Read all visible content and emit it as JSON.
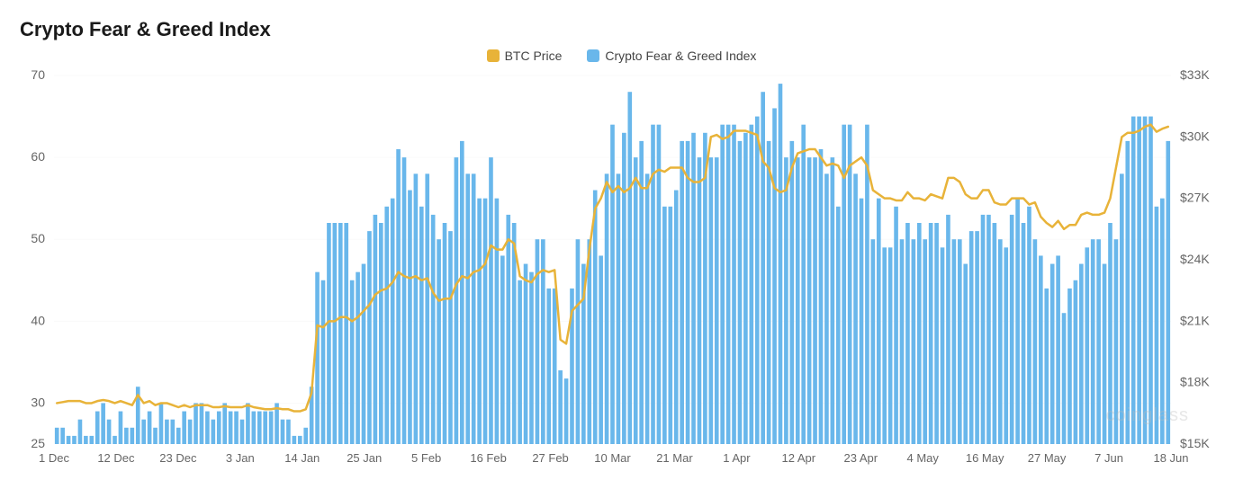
{
  "title": "Crypto Fear & Greed Index",
  "legend": {
    "btc_label": "BTC Price",
    "fg_label": "Crypto Fear & Greed Index"
  },
  "colors": {
    "btc_line": "#e8b339",
    "fg_bar": "#69b7eb",
    "grid": "#fafafa",
    "axis_text": "#666666",
    "background": "#ffffff"
  },
  "chart": {
    "type": "bar+line",
    "left_axis": {
      "label": "",
      "min": 25,
      "max": 70,
      "ticks": [
        25,
        30,
        40,
        50,
        60,
        70
      ],
      "fontsize": 14
    },
    "right_axis": {
      "label": "",
      "min": 15000,
      "max": 33000,
      "ticks": [
        "$15K",
        "$18K",
        "$21K",
        "$24K",
        "$27K",
        "$30K",
        "$33K"
      ],
      "tick_values": [
        15000,
        18000,
        21000,
        24000,
        27000,
        30000,
        33000
      ],
      "fontsize": 14
    },
    "x_axis": {
      "labels": [
        "1 Dec",
        "12 Dec",
        "23 Dec",
        "3 Jan",
        "14 Jan",
        "25 Jan",
        "5 Feb",
        "16 Feb",
        "27 Feb",
        "10 Mar",
        "21 Mar",
        "1 Apr",
        "12 Apr",
        "23 Apr",
        "4 May",
        "16 May",
        "27 May",
        "7 Jun",
        "18 Jun"
      ],
      "fontsize": 13
    },
    "fg_values": [
      27,
      27,
      26,
      26,
      28,
      26,
      26,
      29,
      30,
      28,
      26,
      29,
      27,
      27,
      32,
      28,
      29,
      27,
      30,
      28,
      28,
      27,
      29,
      28,
      30,
      30,
      29,
      28,
      29,
      30,
      29,
      29,
      28,
      30,
      29,
      29,
      29,
      29,
      30,
      28,
      28,
      26,
      26,
      27,
      32,
      46,
      45,
      52,
      52,
      52,
      52,
      45,
      46,
      47,
      51,
      53,
      52,
      54,
      55,
      61,
      60,
      56,
      58,
      54,
      58,
      53,
      50,
      52,
      51,
      60,
      62,
      58,
      58,
      55,
      55,
      60,
      55,
      48,
      53,
      52,
      45,
      47,
      46,
      50,
      50,
      44,
      44,
      34,
      33,
      44,
      50,
      47,
      50,
      56,
      48,
      58,
      64,
      58,
      63,
      68,
      60,
      62,
      58,
      64,
      64,
      54,
      54,
      56,
      62,
      62,
      63,
      60,
      63,
      60,
      60,
      64,
      64,
      64,
      62,
      63,
      64,
      65,
      68,
      62,
      66,
      69,
      60,
      62,
      60,
      64,
      60,
      60,
      61,
      58,
      60,
      54,
      64,
      64,
      58,
      55,
      64,
      50,
      55,
      49,
      49,
      54,
      50,
      52,
      50,
      52,
      50,
      52,
      52,
      49,
      53,
      50,
      50,
      47,
      51,
      51,
      53,
      53,
      52,
      50,
      49,
      53,
      55,
      52,
      54,
      50,
      48,
      44,
      47,
      48,
      41,
      44,
      45,
      47,
      49,
      50,
      50,
      47,
      52,
      50,
      58,
      62,
      65,
      65,
      65,
      65,
      54,
      55,
      62
    ],
    "btc_values": [
      17000,
      17050,
      17100,
      17100,
      17100,
      17000,
      17000,
      17100,
      17150,
      17100,
      17000,
      17100,
      17000,
      16900,
      17400,
      17000,
      17100,
      16900,
      17000,
      17000,
      16900,
      16800,
      16900,
      16800,
      16900,
      16900,
      16900,
      16800,
      16800,
      16850,
      16800,
      16800,
      16800,
      16900,
      16800,
      16750,
      16700,
      16700,
      16750,
      16700,
      16700,
      16600,
      16600,
      16700,
      17500,
      20800,
      20700,
      21000,
      21000,
      21200,
      21200,
      21000,
      21200,
      21500,
      21800,
      22300,
      22500,
      22600,
      22900,
      23400,
      23200,
      23100,
      23200,
      23000,
      23100,
      22400,
      22000,
      22100,
      22100,
      22800,
      23200,
      23100,
      23400,
      23500,
      23800,
      24700,
      24500,
      24500,
      25000,
      24800,
      23200,
      23000,
      22900,
      23300,
      23500,
      23400,
      23500,
      20100,
      19900,
      21500,
      21800,
      22100,
      24500,
      26500,
      27000,
      27800,
      27300,
      27600,
      27300,
      27500,
      28000,
      27500,
      27500,
      28200,
      28400,
      28300,
      28500,
      28500,
      28500,
      28000,
      27800,
      27800,
      28000,
      30000,
      30100,
      29900,
      30000,
      30300,
      30300,
      30300,
      30200,
      30100,
      28800,
      28500,
      27500,
      27300,
      27400,
      28500,
      29200,
      29300,
      29400,
      29400,
      29000,
      28600,
      28700,
      28600,
      28000,
      28600,
      28800,
      29000,
      28600,
      27400,
      27200,
      27000,
      27000,
      26900,
      26900,
      27300,
      27000,
      27000,
      26900,
      27200,
      27100,
      27000,
      28000,
      28000,
      27800,
      27200,
      27000,
      27000,
      27400,
      27400,
      26800,
      26700,
      26700,
      27000,
      27000,
      27000,
      26700,
      26800,
      26100,
      25800,
      25600,
      25900,
      25500,
      25700,
      25700,
      26200,
      26300,
      26200,
      26200,
      26300,
      27000,
      28500,
      30000,
      30200,
      30200,
      30300,
      30500,
      30600,
      30250,
      30400,
      30500
    ],
    "bar_width_ratio": 0.72,
    "line_width": 2.5
  },
  "watermark": "coinglass"
}
